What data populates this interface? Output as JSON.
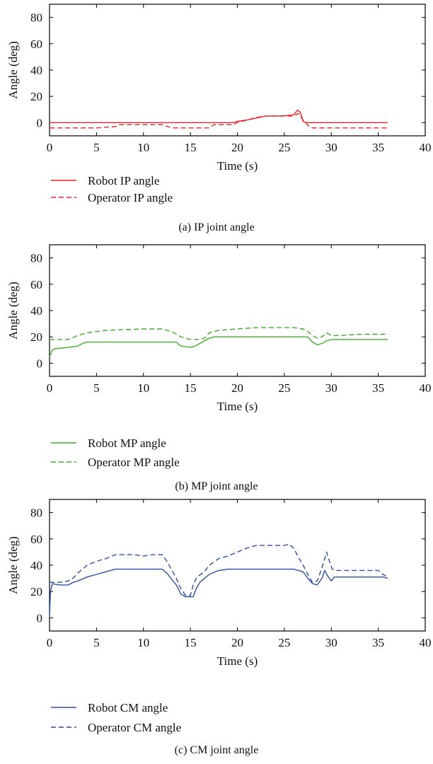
{
  "chart_data": [
    {
      "type": "line",
      "caption": "(a)  IP joint angle",
      "xlabel": "Time (s)",
      "ylabel": "Angle (deg)",
      "xlim": [
        0,
        40
      ],
      "ylim": [
        -10,
        90
      ],
      "xticks": [
        0,
        5,
        10,
        15,
        20,
        25,
        30,
        35,
        40
      ],
      "yticks": [
        0,
        20,
        40,
        60,
        80
      ],
      "legend_position": "below",
      "series": [
        {
          "name": "Robot IP angle",
          "color": "#e8262b",
          "dash": "solid",
          "points": [
            [
              0,
              0
            ],
            [
              19.5,
              0
            ],
            [
              20,
              1
            ],
            [
              21,
              2
            ],
            [
              22,
              3.5
            ],
            [
              23,
              5
            ],
            [
              24,
              5
            ],
            [
              25,
              5.2
            ],
            [
              26,
              6
            ],
            [
              26.4,
              9.5
            ],
            [
              26.7,
              8
            ],
            [
              27,
              1
            ],
            [
              27.3,
              0
            ],
            [
              36,
              0
            ]
          ]
        },
        {
          "name": "Operator IP angle",
          "color": "#e8262b",
          "dash": "dashed",
          "points": [
            [
              0,
              -4
            ],
            [
              5,
              -4
            ],
            [
              7,
              -3
            ],
            [
              7.5,
              -1.5
            ],
            [
              12,
              -1.5
            ],
            [
              13,
              -4
            ],
            [
              17,
              -4
            ],
            [
              17.5,
              -1.5
            ],
            [
              19.5,
              -1.5
            ],
            [
              20,
              0
            ],
            [
              21,
              2
            ],
            [
              22,
              4
            ],
            [
              23,
              5
            ],
            [
              25,
              5
            ],
            [
              26,
              5
            ],
            [
              26.5,
              7
            ],
            [
              27,
              2
            ],
            [
              27.5,
              -2
            ],
            [
              28,
              -4
            ],
            [
              36,
              -4
            ]
          ]
        }
      ]
    },
    {
      "type": "line",
      "caption": "(b)  MP joint angle",
      "xlabel": "Time (s)",
      "ylabel": "Angle (deg)",
      "xlim": [
        0,
        40
      ],
      "ylim": [
        -10,
        90
      ],
      "xticks": [
        0,
        5,
        10,
        15,
        20,
        25,
        30,
        35,
        40
      ],
      "yticks": [
        0,
        20,
        40,
        60,
        80
      ],
      "legend_position": "below",
      "series": [
        {
          "name": "Robot MP angle",
          "color": "#3fae2a",
          "dash": "solid",
          "points": [
            [
              0,
              5
            ],
            [
              0.3,
              10
            ],
            [
              0.6,
              11
            ],
            [
              2,
              12
            ],
            [
              3,
              13
            ],
            [
              3.5,
              15
            ],
            [
              4,
              16
            ],
            [
              13.5,
              16
            ],
            [
              14,
              13
            ],
            [
              15,
              12
            ],
            [
              15.5,
              13
            ],
            [
              16,
              15
            ],
            [
              17,
              19
            ],
            [
              17.5,
              20
            ],
            [
              27.5,
              20
            ],
            [
              28,
              16
            ],
            [
              28.5,
              14
            ],
            [
              29,
              15
            ],
            [
              29.5,
              17
            ],
            [
              30,
              18
            ],
            [
              36,
              18
            ]
          ]
        },
        {
          "name": "Operator MP angle",
          "color": "#3fae2a",
          "dash": "dashed",
          "points": [
            [
              0,
              18
            ],
            [
              2,
              18
            ],
            [
              3,
              21
            ],
            [
              4,
              23
            ],
            [
              5,
              24
            ],
            [
              6,
              25
            ],
            [
              10,
              26
            ],
            [
              12,
              26
            ],
            [
              13,
              24
            ],
            [
              14,
              20
            ],
            [
              15,
              18
            ],
            [
              16,
              18
            ],
            [
              16.5,
              19
            ],
            [
              17,
              23
            ],
            [
              18,
              25
            ],
            [
              20,
              26
            ],
            [
              22,
              27
            ],
            [
              26,
              27
            ],
            [
              27,
              26
            ],
            [
              27.5,
              24
            ],
            [
              28,
              21
            ],
            [
              28.5,
              19
            ],
            [
              29,
              20
            ],
            [
              29.5,
              23
            ],
            [
              30,
              21
            ],
            [
              31,
              21
            ],
            [
              33,
              22
            ],
            [
              36,
              22
            ]
          ]
        }
      ]
    },
    {
      "type": "line",
      "caption": "(c)  CM joint angle",
      "xlabel": "Time (s)",
      "ylabel": "Angle (deg)",
      "xlim": [
        0,
        40
      ],
      "ylim": [
        -10,
        90
      ],
      "xticks": [
        0,
        5,
        10,
        15,
        20,
        25,
        30,
        35,
        40
      ],
      "yticks": [
        0,
        20,
        40,
        60,
        80
      ],
      "legend_position": "below",
      "series": [
        {
          "name": "Robot CM angle",
          "color": "#2e4fa3",
          "dash": "solid",
          "points": [
            [
              0,
              0
            ],
            [
              0.1,
              20
            ],
            [
              0.3,
              26
            ],
            [
              1,
              25
            ],
            [
              2,
              25
            ],
            [
              2.5,
              27
            ],
            [
              3,
              28
            ],
            [
              4,
              31
            ],
            [
              5,
              33
            ],
            [
              6,
              35
            ],
            [
              7,
              37
            ],
            [
              12,
              37
            ],
            [
              12.5,
              34
            ],
            [
              13.5,
              25
            ],
            [
              14,
              18
            ],
            [
              14.5,
              16
            ],
            [
              15,
              16
            ],
            [
              15.3,
              16
            ],
            [
              15.6,
              22
            ],
            [
              16,
              27
            ],
            [
              17,
              33
            ],
            [
              18,
              36
            ],
            [
              19,
              37
            ],
            [
              26,
              37
            ],
            [
              27,
              35
            ],
            [
              27.5,
              30
            ],
            [
              28,
              26
            ],
            [
              28.5,
              25
            ],
            [
              29,
              30
            ],
            [
              29.3,
              36
            ],
            [
              29.6,
              32
            ],
            [
              30,
              28
            ],
            [
              30.3,
              31
            ],
            [
              35.5,
              31
            ],
            [
              36,
              30
            ]
          ]
        },
        {
          "name": "Operator CM angle",
          "color": "#2e4fa3",
          "dash": "dashed",
          "points": [
            [
              0,
              27
            ],
            [
              1,
              27
            ],
            [
              2,
              28
            ],
            [
              2.5,
              30
            ],
            [
              3,
              34
            ],
            [
              4,
              40
            ],
            [
              5,
              43
            ],
            [
              6,
              45
            ],
            [
              7,
              48
            ],
            [
              9,
              48
            ],
            [
              10,
              47
            ],
            [
              11,
              48
            ],
            [
              12,
              48
            ],
            [
              12.5,
              43
            ],
            [
              13.5,
              30
            ],
            [
              14,
              22
            ],
            [
              14.5,
              17
            ],
            [
              15,
              17
            ],
            [
              15.3,
              25
            ],
            [
              15.7,
              31
            ],
            [
              16.5,
              35
            ],
            [
              17,
              40
            ],
            [
              18,
              45
            ],
            [
              19,
              47
            ],
            [
              20,
              50
            ],
            [
              21,
              53
            ],
            [
              22,
              55
            ],
            [
              25,
              55
            ],
            [
              25.5,
              56
            ],
            [
              26,
              53
            ],
            [
              26.5,
              46
            ],
            [
              27,
              40
            ],
            [
              27.5,
              33
            ],
            [
              28,
              27
            ],
            [
              28.5,
              28
            ],
            [
              29,
              38
            ],
            [
              29.3,
              45
            ],
            [
              29.5,
              50
            ],
            [
              29.8,
              43
            ],
            [
              30.1,
              37
            ],
            [
              30.5,
              36
            ],
            [
              35,
              36
            ],
            [
              35.5,
              33
            ],
            [
              36,
              31
            ]
          ]
        }
      ]
    }
  ]
}
